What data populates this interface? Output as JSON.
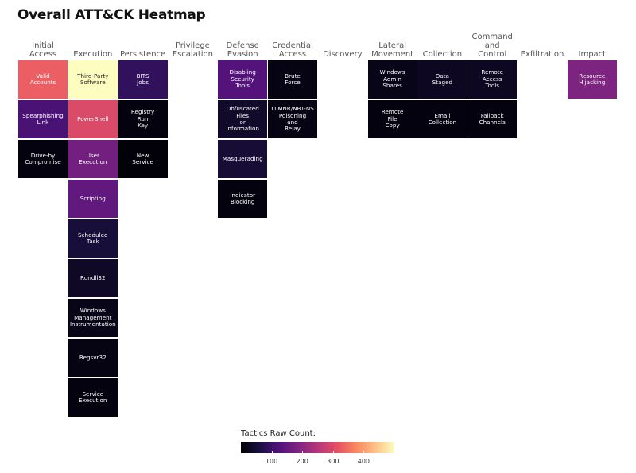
{
  "title": "Overall ATT&CK Heatmap",
  "chart_data": {
    "type": "heatmap",
    "title": "Overall ATT&CK Heatmap",
    "tactics": [
      {
        "label": "Initial\nAccess",
        "techniques": [
          {
            "label": "Valid\nAccounts",
            "value": 330
          },
          {
            "label": "Spearphishing\nLink",
            "value": 120
          },
          {
            "label": "Drive-by\nCompromise",
            "value": 10
          }
        ]
      },
      {
        "label": "Execution",
        "techniques": [
          {
            "label": "Third-Party\nSoftware",
            "value": 500
          },
          {
            "label": "PowerShell",
            "value": 300
          },
          {
            "label": "User\nExecution",
            "value": 170
          },
          {
            "label": "Scripting",
            "value": 150
          },
          {
            "label": "Scheduled\nTask",
            "value": 55
          },
          {
            "label": "Rundll32",
            "value": 35
          },
          {
            "label": "Windows\nManagement\nInstrumentation",
            "value": 20
          },
          {
            "label": "Regsvr32",
            "value": 15
          },
          {
            "label": "Service\nExecution",
            "value": 10
          }
        ]
      },
      {
        "label": "Persistence",
        "techniques": [
          {
            "label": "BITS\nJobs",
            "value": 90
          },
          {
            "label": "Registry\nRun\nKey",
            "value": 10
          },
          {
            "label": "New\nService",
            "value": 5
          }
        ]
      },
      {
        "label": "Privilege\nEscalation",
        "techniques": []
      },
      {
        "label": "Defense\nEvasion",
        "techniques": [
          {
            "label": "Disabling\nSecurity\nTools",
            "value": 130
          },
          {
            "label": "Obfuscated\nFiles\nor\nInformation",
            "value": 40
          },
          {
            "label": "Masquerading",
            "value": 50
          },
          {
            "label": "Indicator\nBlocking",
            "value": 10
          }
        ]
      },
      {
        "label": "Credential\nAccess",
        "techniques": [
          {
            "label": "Brute\nForce",
            "value": 15
          },
          {
            "label": "LLMNR/NBT-NS\nPoisoning\nand\nRelay",
            "value": 15
          }
        ]
      },
      {
        "label": "Discovery",
        "techniques": []
      },
      {
        "label": "Lateral\nMovement",
        "techniques": [
          {
            "label": "Windows\nAdmin\nShares",
            "value": 20
          },
          {
            "label": "Remote\nFile\nCopy",
            "value": 10
          }
        ]
      },
      {
        "label": "Collection",
        "techniques": [
          {
            "label": "Data\nStaged",
            "value": 30
          },
          {
            "label": "Email\nCollection",
            "value": 10
          }
        ]
      },
      {
        "label": "Command\nand\nControl",
        "techniques": [
          {
            "label": "Remote\nAccess\nTools",
            "value": 30
          },
          {
            "label": "Fallback\nChannels",
            "value": 10
          }
        ]
      },
      {
        "label": "Exfiltration",
        "techniques": []
      },
      {
        "label": "Impact",
        "techniques": [
          {
            "label": "Resource\nHijacking",
            "value": 185
          }
        ]
      }
    ],
    "legend": {
      "title": "Tactics Raw Count:",
      "range": [
        0,
        500
      ],
      "ticks": [
        100,
        200,
        300,
        400
      ],
      "tick_labels": [
        "100",
        "200",
        "300",
        "400"
      ]
    },
    "colormap": "magma"
  }
}
